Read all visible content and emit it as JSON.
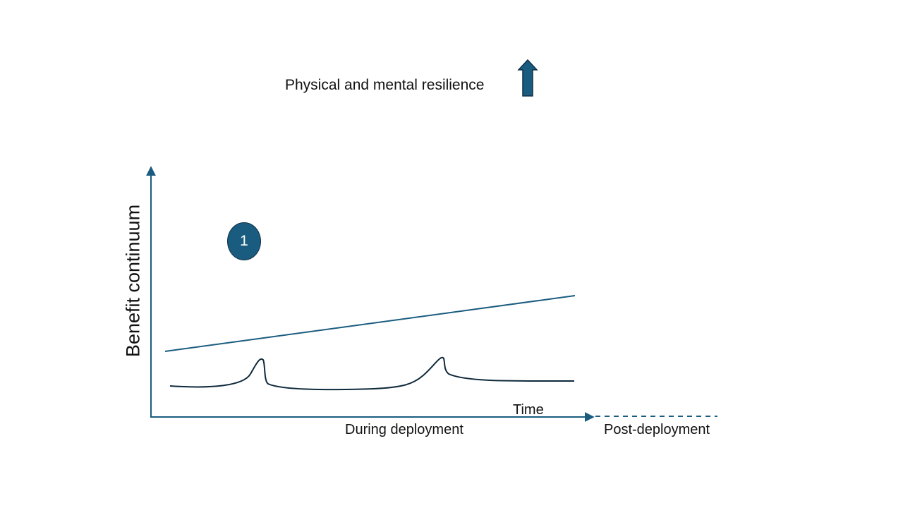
{
  "title": "Physical and mental resilience",
  "arrow_icon": "up-arrow-icon",
  "y_axis_label": "Benefit continuum",
  "x_axis_label": "Time",
  "phases": {
    "during": "During deployment",
    "post": "Post-deployment"
  },
  "marker": {
    "label": "1"
  },
  "colors": {
    "accent": "#1a5c80",
    "axis": "#1a5c80",
    "curve": "#0f2a3d",
    "text": "#111111"
  }
}
